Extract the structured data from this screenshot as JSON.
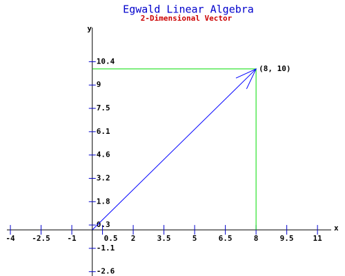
{
  "chart_data": {
    "type": "vector",
    "title": "Egwald Linear Algebra",
    "subtitle": "2-Dimensional Vector",
    "x_label": "x",
    "y_label": "y",
    "vector": {
      "x": 8,
      "y": 10
    },
    "annotation": "(8, 10)",
    "color": "#0000ff",
    "guide_color": "#00dd00",
    "xlim": [
      -4.17,
      11.67
    ],
    "ylim": [
      -2.87,
      12.57
    ],
    "xticks": [
      -4,
      -2.5,
      -1,
      0.5,
      2,
      3.5,
      5,
      6.5,
      8,
      9.5,
      11
    ],
    "yticks": [
      {
        "value": -2.6,
        "label": "-2.6"
      },
      {
        "value": -1.15,
        "label": "-1.1"
      },
      {
        "value": 0.3,
        "label": "0.3"
      },
      {
        "value": 1.75,
        "label": "1.8"
      },
      {
        "value": 3.2,
        "label": "3.2"
      },
      {
        "value": 4.65,
        "label": "4.6"
      },
      {
        "value": 6.1,
        "label": "6.1"
      },
      {
        "value": 7.55,
        "label": "7.5"
      },
      {
        "value": 9,
        "label": "9"
      },
      {
        "value": 10.45,
        "label": "10.4"
      }
    ]
  }
}
